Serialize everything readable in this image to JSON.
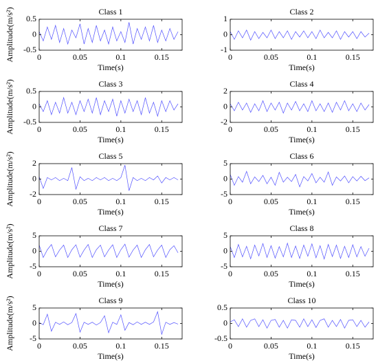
{
  "chart_data": [
    {
      "type": "line",
      "title": "Class 1",
      "xlabel": "Time(s)",
      "ylabel": "Amplitude(m/s²)",
      "color": "#4f4fff",
      "xlim": [
        0,
        0.175
      ],
      "xticks": [
        0,
        0.05,
        0.1,
        0.15
      ],
      "ylim": [
        -0.5,
        0.5
      ],
      "yticks": [
        -0.5,
        0,
        0.5
      ],
      "x": [
        0,
        0.005,
        0.01,
        0.015,
        0.02,
        0.025,
        0.03,
        0.035,
        0.04,
        0.045,
        0.05,
        0.055,
        0.06,
        0.065,
        0.07,
        0.075,
        0.08,
        0.085,
        0.09,
        0.095,
        0.1,
        0.105,
        0.11,
        0.115,
        0.12,
        0.125,
        0.13,
        0.135,
        0.14,
        0.145,
        0.15,
        0.155,
        0.16,
        0.165,
        0.17
      ],
      "values": [
        0.1,
        -0.2,
        0.25,
        -0.15,
        0.3,
        -0.25,
        0.2,
        -0.3,
        0.15,
        -0.1,
        0.35,
        -0.3,
        0.2,
        -0.25,
        0.3,
        -0.2,
        0.15,
        -0.3,
        0.25,
        -0.2,
        0.1,
        -0.25,
        0.4,
        -0.3,
        0.2,
        -0.15,
        0.25,
        -0.2,
        0.3,
        -0.25,
        0.15,
        -0.2,
        0.2,
        -0.15,
        0.1
      ]
    },
    {
      "type": "line",
      "title": "Class 2",
      "xlabel": "Time(s)",
      "color": "#4f4fff",
      "xlim": [
        0,
        0.175
      ],
      "xticks": [
        0,
        0.05,
        0.1,
        0.15
      ],
      "ylim": [
        -1,
        1
      ],
      "yticks": [
        -1,
        0,
        1
      ],
      "x": [
        0,
        0.005,
        0.01,
        0.015,
        0.02,
        0.025,
        0.03,
        0.035,
        0.04,
        0.045,
        0.05,
        0.055,
        0.06,
        0.065,
        0.07,
        0.075,
        0.08,
        0.085,
        0.09,
        0.095,
        0.1,
        0.105,
        0.11,
        0.115,
        0.12,
        0.125,
        0.13,
        0.135,
        0.14,
        0.145,
        0.15,
        0.155,
        0.16,
        0.165,
        0.17
      ],
      "values": [
        0.2,
        -0.3,
        0.25,
        -0.2,
        0.3,
        -0.35,
        0.2,
        -0.25,
        0.15,
        -0.2,
        0.3,
        -0.25,
        0.2,
        -0.2,
        0.25,
        -0.3,
        0.2,
        -0.15,
        0.25,
        -0.2,
        0.2,
        -0.25,
        0.3,
        -0.2,
        0.15,
        -0.2,
        0.25,
        -0.3,
        0.2,
        -0.15,
        0.2,
        -0.25,
        0.2,
        -0.15,
        0.1
      ]
    },
    {
      "type": "line",
      "title": "Class 3",
      "xlabel": "Time(s)",
      "ylabel": "Amplitude(m/s²)",
      "color": "#4f4fff",
      "xlim": [
        0,
        0.175
      ],
      "xticks": [
        0,
        0.05,
        0.1,
        0.15
      ],
      "ylim": [
        -0.5,
        0.5
      ],
      "yticks": [
        -0.5,
        0,
        0.5
      ],
      "x": [
        0,
        0.005,
        0.01,
        0.015,
        0.02,
        0.025,
        0.03,
        0.035,
        0.04,
        0.045,
        0.05,
        0.055,
        0.06,
        0.065,
        0.07,
        0.075,
        0.08,
        0.085,
        0.09,
        0.095,
        0.1,
        0.105,
        0.11,
        0.115,
        0.12,
        0.125,
        0.13,
        0.135,
        0.14,
        0.145,
        0.15,
        0.155,
        0.16,
        0.165,
        0.17
      ],
      "values": [
        0.1,
        -0.15,
        0.2,
        -0.25,
        0.15,
        -0.2,
        0.3,
        -0.2,
        0.15,
        -0.25,
        0.2,
        -0.15,
        0.25,
        -0.2,
        0.3,
        -0.25,
        0.2,
        -0.15,
        0.25,
        -0.3,
        0.2,
        -0.2,
        0.25,
        -0.15,
        0.2,
        -0.25,
        0.3,
        -0.2,
        0.15,
        -0.3,
        0.2,
        -0.15,
        0.2,
        -0.1,
        0.1
      ]
    },
    {
      "type": "line",
      "title": "Class 4",
      "xlabel": "Time(s)",
      "color": "#4f4fff",
      "xlim": [
        0,
        0.175
      ],
      "xticks": [
        0,
        0.05,
        0.1,
        0.15
      ],
      "ylim": [
        -2,
        2
      ],
      "yticks": [
        -2,
        0,
        2
      ],
      "x": [
        0,
        0.005,
        0.01,
        0.015,
        0.02,
        0.025,
        0.03,
        0.035,
        0.04,
        0.045,
        0.05,
        0.055,
        0.06,
        0.065,
        0.07,
        0.075,
        0.08,
        0.085,
        0.09,
        0.095,
        0.1,
        0.105,
        0.11,
        0.115,
        0.12,
        0.125,
        0.13,
        0.135,
        0.14,
        0.145,
        0.15,
        0.155,
        0.16,
        0.165,
        0.17
      ],
      "values": [
        0.4,
        -0.5,
        0.6,
        -0.4,
        0.5,
        -0.7,
        0.4,
        -0.5,
        0.8,
        -0.6,
        0.5,
        -0.4,
        0.6,
        -0.8,
        0.5,
        -0.4,
        0.7,
        -0.5,
        0.4,
        -0.6,
        0.8,
        -0.5,
        0.4,
        -0.6,
        0.5,
        -0.7,
        0.6,
        -0.4,
        0.8,
        -0.5,
        0.4,
        -0.6,
        0.5,
        -0.4,
        0.3
      ]
    },
    {
      "type": "line",
      "title": "Class 5",
      "xlabel": "Time(s)",
      "ylabel": "Amplitude(m/s²)",
      "color": "#4f4fff",
      "xlim": [
        0,
        0.175
      ],
      "xticks": [
        0,
        0.05,
        0.1,
        0.15
      ],
      "ylim": [
        -2,
        2
      ],
      "yticks": [
        -2,
        0,
        2
      ],
      "x": [
        0,
        0.005,
        0.01,
        0.015,
        0.02,
        0.025,
        0.03,
        0.035,
        0.04,
        0.045,
        0.05,
        0.055,
        0.06,
        0.065,
        0.07,
        0.075,
        0.08,
        0.085,
        0.09,
        0.095,
        0.1,
        0.105,
        0.11,
        0.115,
        0.12,
        0.125,
        0.13,
        0.135,
        0.14,
        0.145,
        0.15,
        0.155,
        0.16,
        0.165,
        0.17
      ],
      "values": [
        0.3,
        -1.2,
        0.2,
        -0.1,
        0.2,
        -0.2,
        0.1,
        -0.2,
        1.5,
        -1.3,
        0.3,
        -0.2,
        0.1,
        -0.2,
        0.2,
        -0.1,
        0.2,
        -0.2,
        0.1,
        -0.2,
        0.2,
        1.8,
        -1.5,
        0.2,
        -0.2,
        0.1,
        -0.2,
        0.2,
        -0.1,
        0.4,
        -0.5,
        0.2,
        -0.1,
        0.2,
        -0.1
      ]
    },
    {
      "type": "line",
      "title": "Class 6",
      "xlabel": "Time(s)",
      "color": "#4f4fff",
      "xlim": [
        0,
        0.175
      ],
      "xticks": [
        0,
        0.05,
        0.1,
        0.15
      ],
      "ylim": [
        -5,
        5
      ],
      "yticks": [
        -5,
        0,
        5
      ],
      "x": [
        0,
        0.005,
        0.01,
        0.015,
        0.02,
        0.025,
        0.03,
        0.035,
        0.04,
        0.045,
        0.05,
        0.055,
        0.06,
        0.065,
        0.07,
        0.075,
        0.08,
        0.085,
        0.09,
        0.095,
        0.1,
        0.105,
        0.11,
        0.115,
        0.12,
        0.125,
        0.13,
        0.135,
        0.14,
        0.145,
        0.15,
        0.155,
        0.16,
        0.165,
        0.17
      ],
      "values": [
        1.5,
        -2,
        0.8,
        -1,
        2.5,
        -1.5,
        0.7,
        -0.8,
        1.2,
        -1.5,
        0.6,
        -2,
        2.2,
        -1,
        0.6,
        -0.8,
        1.5,
        -2.5,
        0.8,
        -0.6,
        1.8,
        -1.2,
        0.6,
        -1,
        2.3,
        -2,
        0.7,
        -0.6,
        1,
        -1.2,
        0.8,
        -0.6,
        0.9,
        -0.5,
        0.4
      ]
    },
    {
      "type": "line",
      "title": "Class 7",
      "xlabel": "Time(s)",
      "ylabel": "Amplitude(m/s²)",
      "color": "#4f4fff",
      "xlim": [
        0,
        0.175
      ],
      "xticks": [
        0,
        0.05,
        0.1,
        0.15
      ],
      "ylim": [
        -5,
        5
      ],
      "yticks": [
        -5,
        0,
        5
      ],
      "x": [
        0,
        0.005,
        0.01,
        0.015,
        0.02,
        0.025,
        0.03,
        0.035,
        0.04,
        0.045,
        0.05,
        0.055,
        0.06,
        0.065,
        0.07,
        0.075,
        0.08,
        0.085,
        0.09,
        0.095,
        0.1,
        0.105,
        0.11,
        0.115,
        0.12,
        0.125,
        0.13,
        0.135,
        0.14,
        0.145,
        0.15,
        0.155,
        0.16,
        0.165,
        0.17
      ],
      "values": [
        2,
        -2,
        0.5,
        2.2,
        -1.8,
        0.4,
        2,
        -2,
        0.5,
        2.1,
        -1.9,
        0.4,
        2.2,
        -2,
        0.5,
        2,
        -1.8,
        0.4,
        2.1,
        -2,
        0.5,
        2.3,
        -1.9,
        0.4,
        2,
        -2,
        0.5,
        2.2,
        -1.8,
        0.4,
        2,
        -2,
        0.5,
        1.8,
        -0.5
      ]
    },
    {
      "type": "line",
      "title": "Class 8",
      "xlabel": "Time(s)",
      "color": "#4f4fff",
      "xlim": [
        0,
        0.175
      ],
      "xticks": [
        0,
        0.05,
        0.1,
        0.15
      ],
      "ylim": [
        -5,
        5
      ],
      "yticks": [
        -5,
        0,
        5
      ],
      "x": [
        0,
        0.005,
        0.01,
        0.015,
        0.02,
        0.025,
        0.03,
        0.035,
        0.04,
        0.045,
        0.05,
        0.055,
        0.06,
        0.065,
        0.07,
        0.075,
        0.08,
        0.085,
        0.09,
        0.095,
        0.1,
        0.105,
        0.11,
        0.115,
        0.12,
        0.125,
        0.13,
        0.135,
        0.14,
        0.145,
        0.15,
        0.155,
        0.16,
        0.165,
        0.17
      ],
      "values": [
        1.5,
        -2,
        2.2,
        -1.8,
        1.6,
        -2.4,
        2,
        -1.5,
        2.5,
        -2,
        1.8,
        -2.2,
        1.5,
        -1.8,
        2.6,
        -2,
        1.7,
        -2.3,
        2,
        -1.6,
        2.4,
        -2.1,
        1.8,
        -2.5,
        2.2,
        -1.7,
        2,
        -2.3,
        1.6,
        -2,
        2.1,
        -1.8,
        1.5,
        -1.6,
        1
      ]
    },
    {
      "type": "line",
      "title": "Class 9",
      "xlabel": "Time(s)",
      "ylabel": "Amplitude(m/s²)",
      "color": "#4f4fff",
      "xlim": [
        0,
        0.175
      ],
      "xticks": [
        0,
        0.05,
        0.1,
        0.15
      ],
      "ylim": [
        -5,
        5
      ],
      "yticks": [
        -5,
        0,
        5
      ],
      "x": [
        0,
        0.005,
        0.01,
        0.015,
        0.02,
        0.025,
        0.03,
        0.035,
        0.04,
        0.045,
        0.05,
        0.055,
        0.06,
        0.065,
        0.07,
        0.075,
        0.08,
        0.085,
        0.09,
        0.095,
        0.1,
        0.105,
        0.11,
        0.115,
        0.12,
        0.125,
        0.13,
        0.135,
        0.14,
        0.145,
        0.15,
        0.155,
        0.16,
        0.165,
        0.17
      ],
      "values": [
        0.3,
        -0.4,
        3,
        -2.5,
        0.4,
        -0.3,
        0.5,
        -0.4,
        0.3,
        3.2,
        -2.8,
        0.4,
        -0.3,
        0.4,
        -0.5,
        0.3,
        2.5,
        -3,
        0.4,
        -0.3,
        2.8,
        -2.2,
        0.3,
        -0.4,
        0.5,
        -0.3,
        0.4,
        -0.3,
        0.5,
        3.8,
        -3.5,
        0.4,
        -0.3,
        0.3,
        -0.2
      ]
    },
    {
      "type": "line",
      "title": "Class 10",
      "xlabel": "Time(s)",
      "color": "#4f4fff",
      "xlim": [
        0,
        0.175
      ],
      "xticks": [
        0,
        0.05,
        0.1,
        0.15
      ],
      "ylim": [
        -0.5,
        0.5
      ],
      "yticks": [
        -0.5,
        0,
        0.5
      ],
      "x": [
        0,
        0.005,
        0.01,
        0.015,
        0.02,
        0.025,
        0.03,
        0.035,
        0.04,
        0.045,
        0.05,
        0.055,
        0.06,
        0.065,
        0.07,
        0.075,
        0.08,
        0.085,
        0.09,
        0.095,
        0.1,
        0.105,
        0.11,
        0.115,
        0.12,
        0.125,
        0.13,
        0.135,
        0.14,
        0.145,
        0.15,
        0.155,
        0.16,
        0.165,
        0.17
      ],
      "values": [
        0.05,
        0.12,
        -0.1,
        0.15,
        -0.12,
        0.1,
        0.15,
        -0.1,
        0.12,
        -0.15,
        0.1,
        0.13,
        -0.12,
        0.1,
        -0.15,
        0.12,
        0.1,
        -0.12,
        0.15,
        -0.1,
        0.12,
        -0.13,
        0.1,
        0.15,
        -0.12,
        0.1,
        -0.1,
        0.13,
        -0.15,
        0.1,
        0.12,
        -0.1,
        0.1,
        -0.12,
        0.05
      ]
    }
  ]
}
